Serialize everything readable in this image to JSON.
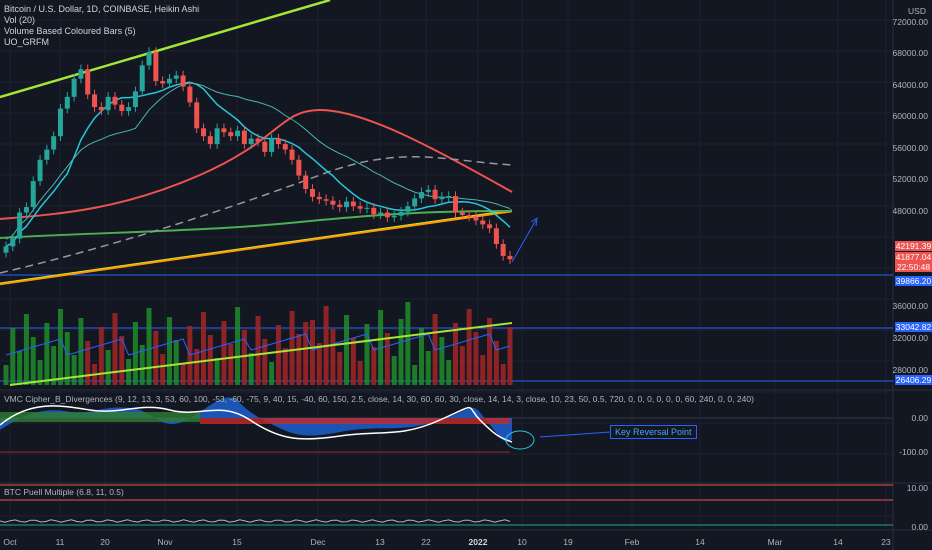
{
  "legend": {
    "title": "Bitcoin / U.S. Dollar, 1D, COINBASE, Heikin Ashi",
    "vol": "Vol (20)",
    "vbcb": "Volume Based Coloured Bars (5)",
    "uo": "UO_GRFM"
  },
  "vmc_legend": "VMC Cipher_B_Divergences (9, 12, 13, 3, 53, 60, 100, -53, -60, -75, 9, 40, 15, -40, 60, 150, 2.5, close, 14, 30, 60, 60, 30, close, 14, 14, 3, close, 10, 23, 50, 0.5, 720, 0, 0, 0, 0, 0, 0, 60, 240, 0, 0, 240)",
  "puell_legend": "BTC Puell Multiple (6.8, 11, 0.5)",
  "currency": "USD",
  "annotation": "Key Reversal Point",
  "colors": {
    "bg": "#131722",
    "up": "#26a69a",
    "down": "#ef5350",
    "accent": "#2962ff"
  },
  "price_ticks": [
    "72000.00",
    "68000.00",
    "64000.00",
    "60000.00",
    "56000.00",
    "52000.00",
    "48000.00",
    "36000.00",
    "32000.00",
    "28000.00"
  ],
  "price_tags": [
    {
      "value": "42191.39",
      "color": "#ef5350"
    },
    {
      "value": "41877.04",
      "color": "#ef5350"
    },
    {
      "value": "22:50:48",
      "color": "#ef5350"
    },
    {
      "value": "39866.20",
      "color": "#2962ff"
    },
    {
      "value": "33042.82",
      "color": "#2962ff"
    },
    {
      "value": "26406.29",
      "color": "#2962ff"
    }
  ],
  "vmc_ticks": [
    "0.00",
    "-100.00"
  ],
  "puell_ticks": [
    "10.00",
    "0.00"
  ],
  "x_ticks": [
    "Oct",
    "11",
    "20",
    "Nov",
    "15",
    "Dec",
    "13",
    "22",
    "2022",
    "10",
    "19",
    "Feb",
    "14",
    "Mar",
    "14",
    "23"
  ],
  "chart_data": {
    "type": "candlestick",
    "title": "Bitcoin / U.S. Dollar, 1D, COINBASE, Heikin Ashi",
    "ylabel": "USD",
    "ylim": [
      24000,
      76000
    ],
    "horizontal_levels": [
      39866.2,
      33042.82,
      26406.29
    ],
    "last_price": 41877.04,
    "x_ticks": [
      "Oct",
      "11",
      "20",
      "Nov",
      "15",
      "Dec",
      "13",
      "22",
      "2022",
      "10",
      "19",
      "Feb",
      "14",
      "Mar",
      "14",
      "23"
    ],
    "candles_close_approx": [
      43500,
      44500,
      47800,
      48500,
      51800,
      54500,
      55800,
      57500,
      61000,
      62500,
      64800,
      66000,
      62800,
      61200,
      60800,
      62500,
      61500,
      60700,
      61200,
      63200,
      66500,
      68200,
      64500,
      64200,
      64800,
      65200,
      63800,
      61800,
      58500,
      57500,
      56500,
      58500,
      58000,
      57500,
      58200,
      56500,
      57200,
      56800,
      55500,
      57200,
      56500,
      55800,
      54500,
      52500,
      50800,
      49800,
      49500,
      49300,
      48800,
      48500,
      49200,
      48600,
      48300,
      48400,
      47600,
      47800,
      47200,
      47400,
      47900,
      48600,
      49600,
      50400,
      50700,
      49500,
      49800,
      49900,
      47800,
      47500,
      47300,
      46800,
      46300,
      45800,
      43800,
      42300,
      41877
    ]
  }
}
